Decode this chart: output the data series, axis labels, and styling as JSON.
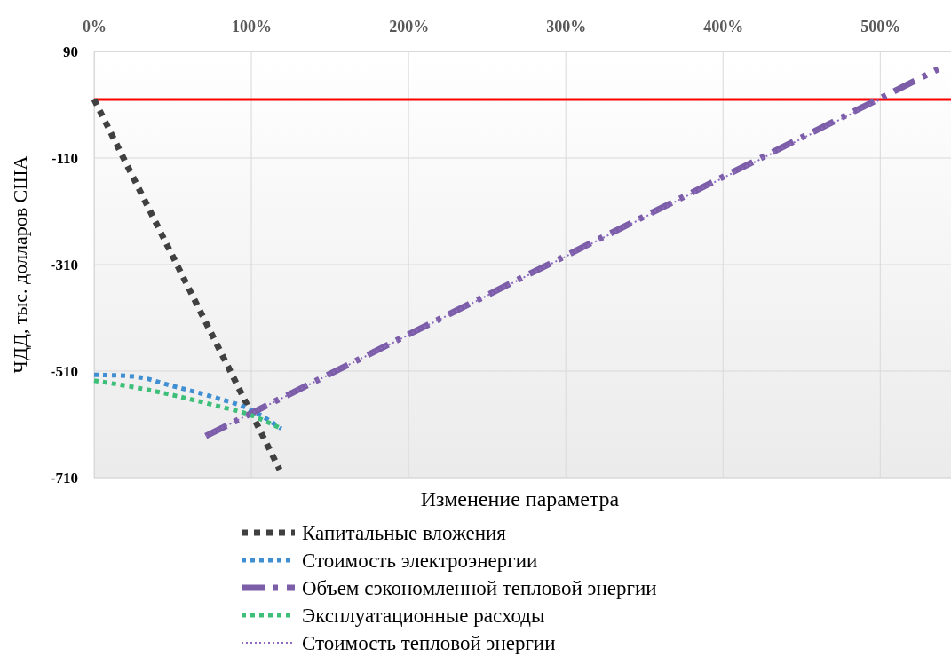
{
  "chart_data": {
    "type": "line",
    "xlabel": "Изменение параметра",
    "ylabel": "ЧДД, тыс. долларов США",
    "xlim": [
      0,
      545
    ],
    "xticks": [
      {
        "value": 0,
        "label": "0%"
      },
      {
        "value": 100,
        "label": "100%"
      },
      {
        "value": 200,
        "label": "200%"
      },
      {
        "value": 300,
        "label": "300%"
      },
      {
        "value": 400,
        "label": "400%"
      },
      {
        "value": 500,
        "label": "500%"
      }
    ],
    "ylim": [
      -710,
      90
    ],
    "yticks": [
      -710,
      -510,
      -310,
      -110,
      90
    ],
    "grid": true,
    "legend": "bottom",
    "marker": "none",
    "ref_lines": [
      {
        "axis": "y",
        "value": 0,
        "color": "#ff0000",
        "line_style": "solid"
      }
    ],
    "series": [
      {
        "name": "Капитальные вложения",
        "color": "#404040",
        "line_style": "dotted",
        "x": [
          0,
          118
        ],
        "values": [
          0,
          -695
        ]
      },
      {
        "name": "Стоимость электроэнергии",
        "color": "#3f8fd2",
        "line_style": "dotted",
        "x": [
          0,
          25,
          50,
          75,
          100,
          119
        ],
        "values": [
          -517,
          -520,
          -538,
          -558,
          -583,
          -618
        ]
      },
      {
        "name": "Объем сэкономленной тепловой энергии",
        "color": "#7b5ea7",
        "line_style": "dashed",
        "x": [
          71,
          537
        ],
        "values": [
          -632,
          57
        ]
      },
      {
        "name": "Эксплуатационные расходы",
        "color": "#3dbf7a",
        "line_style": "dotted",
        "x": [
          0,
          25,
          50,
          75,
          100,
          119
        ],
        "values": [
          -528,
          -540,
          -555,
          -573,
          -593,
          -618
        ]
      },
      {
        "name": "Стоимость тепловой энергии",
        "color": "#8e6bc0",
        "line_style": "dotted",
        "x": [
          71,
          500
        ],
        "values": [
          -632,
          0
        ]
      }
    ]
  }
}
